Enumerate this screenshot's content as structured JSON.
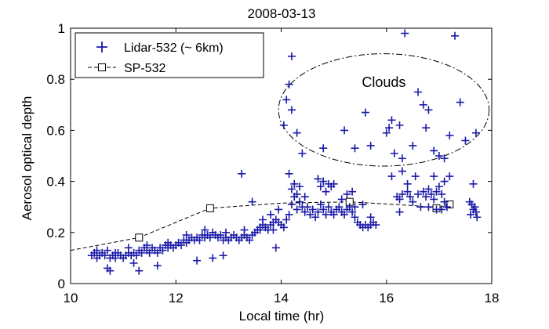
{
  "chart_data": {
    "type": "scatter",
    "title": "2008-03-13",
    "xlabel": "Local time (hr)",
    "ylabel": "Aerosol optical depth",
    "xlim": [
      10,
      18
    ],
    "ylim": [
      0,
      1
    ],
    "xticks": [
      10,
      12,
      14,
      16,
      18
    ],
    "yticks": [
      0,
      0.2,
      0.4,
      0.6,
      0.8,
      1
    ],
    "xtick_labels": [
      "10",
      "12",
      "14",
      "16",
      "18"
    ],
    "ytick_labels": [
      "0",
      "0.2",
      "0.4",
      "0.6",
      "0.8",
      "1"
    ],
    "grid": false,
    "legend_position": "top-left",
    "annotation": {
      "text": "Clouds",
      "x": 15.95,
      "y": 0.77
    },
    "cloud_ellipse": {
      "cx": 15.95,
      "cy": 0.68,
      "rx": 2.0,
      "ry": 0.22
    },
    "series": [
      {
        "name": "Lidar-532 (~ 6km)",
        "style": "plus",
        "color": "#1a1aa8",
        "points": [
          [
            10.4,
            0.11
          ],
          [
            10.45,
            0.12
          ],
          [
            10.5,
            0.1
          ],
          [
            10.55,
            0.11
          ],
          [
            10.6,
            0.12
          ],
          [
            10.65,
            0.11
          ],
          [
            10.7,
            0.13
          ],
          [
            10.75,
            0.1
          ],
          [
            10.8,
            0.11
          ],
          [
            10.85,
            0.1
          ],
          [
            10.9,
            0.12
          ],
          [
            10.95,
            0.11
          ],
          [
            11.0,
            0.1
          ],
          [
            11.05,
            0.11
          ],
          [
            11.1,
            0.12
          ],
          [
            11.15,
            0.11
          ],
          [
            11.2,
            0.12
          ],
          [
            11.25,
            0.11
          ],
          [
            11.3,
            0.13
          ],
          [
            11.35,
            0.12
          ],
          [
            11.4,
            0.14
          ],
          [
            11.45,
            0.13
          ],
          [
            11.5,
            0.12
          ],
          [
            11.55,
            0.14
          ],
          [
            11.6,
            0.13
          ],
          [
            11.65,
            0.12
          ],
          [
            11.7,
            0.14
          ],
          [
            11.75,
            0.13
          ],
          [
            11.8,
            0.15
          ],
          [
            11.85,
            0.14
          ],
          [
            11.9,
            0.15
          ],
          [
            11.95,
            0.14
          ],
          [
            12.0,
            0.15
          ],
          [
            12.05,
            0.16
          ],
          [
            12.1,
            0.15
          ],
          [
            12.15,
            0.17
          ],
          [
            12.2,
            0.16
          ],
          [
            12.25,
            0.17
          ],
          [
            12.3,
            0.18
          ],
          [
            12.35,
            0.17
          ],
          [
            12.4,
            0.18
          ],
          [
            12.45,
            0.17
          ],
          [
            12.5,
            0.19
          ],
          [
            12.55,
            0.18
          ],
          [
            12.6,
            0.19
          ],
          [
            12.65,
            0.18
          ],
          [
            12.7,
            0.2
          ],
          [
            12.75,
            0.19
          ],
          [
            12.8,
            0.18
          ],
          [
            12.85,
            0.19
          ],
          [
            12.9,
            0.17
          ],
          [
            12.95,
            0.18
          ],
          [
            13.0,
            0.17
          ],
          [
            13.05,
            0.18
          ],
          [
            13.1,
            0.19
          ],
          [
            13.15,
            0.18
          ],
          [
            13.2,
            0.17
          ],
          [
            13.25,
            0.18
          ],
          [
            13.3,
            0.19
          ],
          [
            13.35,
            0.18
          ],
          [
            13.4,
            0.17
          ],
          [
            13.45,
            0.19
          ],
          [
            13.5,
            0.2
          ],
          [
            13.55,
            0.21
          ],
          [
            13.6,
            0.22
          ],
          [
            13.65,
            0.23
          ],
          [
            13.7,
            0.22
          ],
          [
            13.75,
            0.21
          ],
          [
            13.8,
            0.23
          ],
          [
            13.85,
            0.24
          ],
          [
            13.9,
            0.25
          ],
          [
            13.95,
            0.24
          ],
          [
            10.7,
            0.06
          ],
          [
            10.75,
            0.05
          ],
          [
            11.3,
            0.05
          ],
          [
            11.2,
            0.08
          ],
          [
            11.65,
            0.07
          ],
          [
            12.4,
            0.09
          ],
          [
            12.7,
            0.1
          ],
          [
            12.9,
            0.11
          ],
          [
            10.5,
            0.13
          ],
          [
            10.85,
            0.12
          ],
          [
            11.1,
            0.14
          ],
          [
            11.45,
            0.15
          ],
          [
            11.85,
            0.16
          ],
          [
            12.2,
            0.19
          ],
          [
            12.55,
            0.21
          ],
          [
            12.95,
            0.2
          ],
          [
            13.3,
            0.21
          ],
          [
            13.65,
            0.25
          ],
          [
            13.8,
            0.27
          ],
          [
            13.95,
            0.29
          ],
          [
            13.45,
            0.32
          ],
          [
            13.25,
            0.43
          ],
          [
            13.9,
            0.14
          ],
          [
            13.6,
            0.21
          ],
          [
            14.0,
            0.23
          ],
          [
            14.05,
            0.22
          ],
          [
            14.1,
            0.25
          ],
          [
            14.15,
            0.27
          ],
          [
            14.2,
            0.31
          ],
          [
            14.25,
            0.34
          ],
          [
            14.3,
            0.29
          ],
          [
            14.35,
            0.32
          ],
          [
            14.4,
            0.3
          ],
          [
            14.45,
            0.28
          ],
          [
            14.5,
            0.3
          ],
          [
            14.55,
            0.27
          ],
          [
            14.6,
            0.29
          ],
          [
            14.65,
            0.26
          ],
          [
            14.7,
            0.28
          ],
          [
            14.75,
            0.31
          ],
          [
            14.8,
            0.29
          ],
          [
            14.85,
            0.27
          ],
          [
            14.9,
            0.3
          ],
          [
            14.95,
            0.28
          ],
          [
            15.0,
            0.27
          ],
          [
            15.05,
            0.29
          ],
          [
            15.1,
            0.3
          ],
          [
            15.15,
            0.28
          ],
          [
            15.2,
            0.27
          ],
          [
            15.25,
            0.29
          ],
          [
            15.3,
            0.3
          ],
          [
            15.35,
            0.28
          ],
          [
            15.4,
            0.26
          ],
          [
            15.45,
            0.24
          ],
          [
            15.5,
            0.23
          ],
          [
            15.55,
            0.22
          ],
          [
            15.6,
            0.23
          ],
          [
            15.65,
            0.22
          ],
          [
            15.7,
            0.23
          ],
          [
            15.75,
            0.24
          ],
          [
            15.8,
            0.23
          ],
          [
            14.2,
            0.37
          ],
          [
            14.3,
            0.35
          ],
          [
            14.45,
            0.34
          ],
          [
            14.75,
            0.38
          ],
          [
            14.85,
            0.36
          ],
          [
            14.95,
            0.38
          ],
          [
            15.0,
            0.39
          ],
          [
            15.25,
            0.35
          ],
          [
            15.35,
            0.36
          ],
          [
            15.55,
            0.31
          ],
          [
            14.15,
            0.43
          ],
          [
            14.25,
            0.39
          ],
          [
            14.35,
            0.38
          ],
          [
            14.7,
            0.41
          ],
          [
            14.8,
            0.4
          ],
          [
            14.9,
            0.39
          ],
          [
            15.15,
            0.33
          ],
          [
            15.4,
            0.3
          ],
          [
            15.7,
            0.26
          ],
          [
            16.2,
            0.34
          ],
          [
            16.25,
            0.33
          ],
          [
            16.3,
            0.35
          ],
          [
            16.4,
            0.36
          ],
          [
            16.45,
            0.34
          ],
          [
            16.5,
            0.32
          ],
          [
            16.6,
            0.35
          ],
          [
            16.7,
            0.36
          ],
          [
            16.75,
            0.34
          ],
          [
            16.8,
            0.37
          ],
          [
            16.85,
            0.35
          ],
          [
            16.9,
            0.33
          ],
          [
            16.95,
            0.36
          ],
          [
            17.0,
            0.38
          ],
          [
            17.05,
            0.35
          ],
          [
            17.1,
            0.32
          ],
          [
            17.15,
            0.3
          ],
          [
            16.25,
            0.28
          ],
          [
            16.65,
            0.3
          ],
          [
            16.8,
            0.3
          ],
          [
            16.95,
            0.29
          ],
          [
            17.05,
            0.29
          ],
          [
            17.1,
            0.4
          ],
          [
            16.4,
            0.39
          ],
          [
            16.55,
            0.42
          ],
          [
            16.9,
            0.42
          ],
          [
            17.2,
            0.42
          ],
          [
            16.3,
            0.44
          ],
          [
            16.15,
            0.51
          ],
          [
            16.3,
            0.49
          ],
          [
            16.1,
            0.42
          ],
          [
            14.05,
            0.62
          ],
          [
            14.1,
            0.72
          ],
          [
            14.2,
            0.68
          ],
          [
            14.4,
            0.51
          ],
          [
            14.3,
            0.59
          ],
          [
            14.8,
            0.53
          ],
          [
            15.4,
            0.53
          ],
          [
            15.2,
            0.6
          ],
          [
            15.6,
            0.67
          ],
          [
            15.7,
            0.54
          ],
          [
            16.0,
            0.59
          ],
          [
            16.05,
            0.61
          ],
          [
            16.1,
            0.64
          ],
          [
            16.25,
            0.62
          ],
          [
            16.35,
            0.98
          ],
          [
            16.6,
            0.75
          ],
          [
            16.7,
            0.7
          ],
          [
            16.75,
            0.61
          ],
          [
            16.8,
            0.68
          ],
          [
            16.9,
            0.52
          ],
          [
            17.0,
            0.5
          ],
          [
            17.1,
            0.49
          ],
          [
            17.2,
            0.58
          ],
          [
            17.3,
            0.97
          ],
          [
            17.4,
            0.71
          ],
          [
            17.5,
            0.56
          ],
          [
            17.7,
            0.59
          ],
          [
            17.65,
            0.39
          ],
          [
            14.15,
            0.78
          ],
          [
            14.2,
            0.89
          ],
          [
            16.5,
            0.54
          ],
          [
            17.6,
            0.27
          ],
          [
            17.65,
            0.29
          ],
          [
            17.7,
            0.28
          ],
          [
            17.62,
            0.31
          ],
          [
            17.68,
            0.3
          ],
          [
            17.58,
            0.32
          ],
          [
            17.72,
            0.26
          ],
          [
            13.85,
            0.21
          ]
        ]
      },
      {
        "name": "SP-532",
        "style": "dashed-square",
        "color": "#000000",
        "x": [
          10,
          11.3,
          12.65,
          14.0,
          15.3,
          16.55,
          16.95,
          17.2
        ],
        "y": [
          0.13,
          0.18,
          0.295,
          0.315,
          0.32,
          0.305,
          0.295,
          0.31
        ],
        "markers_at": [
          11.3,
          12.65,
          15.3,
          16.95,
          17.2
        ]
      }
    ]
  }
}
